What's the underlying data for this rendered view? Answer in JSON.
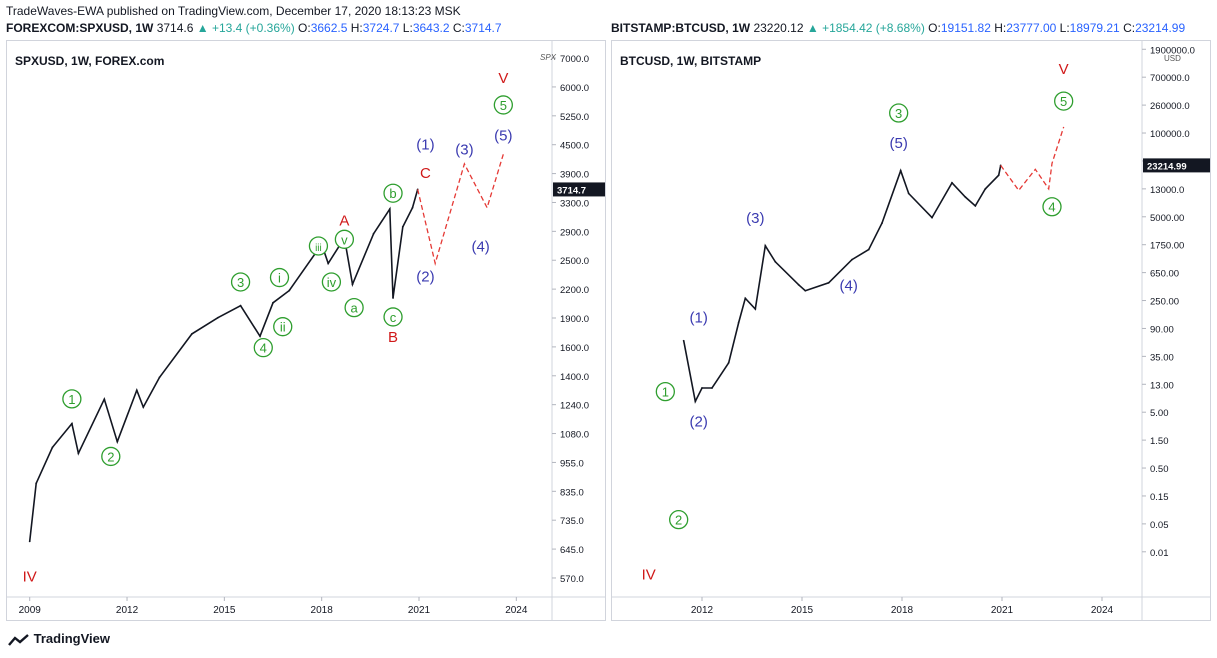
{
  "header": {
    "line1": "TradeWaves-EWA published on TradingView.com, December 17, 2020 18:13:23 MSK",
    "left": {
      "symbol": "FOREXCOM:SPXUSD, 1W",
      "price": "3714.6",
      "change": "▲ +13.4 (+0.36%)",
      "o_label": "O:",
      "o": "3662.5",
      "h_label": "H:",
      "h": "3724.7",
      "l_label": "L:",
      "l": "3643.2",
      "c_label": "C:",
      "c": "3714.7"
    },
    "right": {
      "symbol": "BITSTAMP:BTCUSD, 1W",
      "price": "23220.12",
      "change": "▲ +1854.42 (+8.68%)",
      "o_label": "O:",
      "o": "19151.82",
      "h_label": "H:",
      "h": "23777.00",
      "l_label": "L:",
      "l": "18979.21",
      "c_label": "C:",
      "c": "23214.99"
    }
  },
  "footer": {
    "brand": "TradingView"
  },
  "colors": {
    "green": "#2e9e2e",
    "blue": "#3a3ab0",
    "red": "#d01919",
    "price": "#131722",
    "projection": "#e53935"
  },
  "chart_data": [
    {
      "type": "line",
      "title": "SPXUSD, 1W, FOREX.com",
      "scale": "log",
      "y_ticks": [
        "7000.0",
        "6000.0",
        "5250.0",
        "4500.0",
        "3900.0",
        "3300.0",
        "2900.0",
        "2500.0",
        "2200.0",
        "1900.0",
        "1600.0",
        "1400.0",
        "1240.0",
        "1080.0",
        "955.0",
        "835.0",
        "735.0",
        "645.0",
        "570.0"
      ],
      "x_ticks": [
        "2009",
        "2012",
        "2015",
        "2018",
        "2021",
        "2024"
      ],
      "axis_corner": "SPX",
      "last_price_label": "3714.7",
      "x": [
        2009.0,
        2009.2,
        2009.7,
        2010.3,
        2010.5,
        2011.3,
        2011.7,
        2012.3,
        2012.5,
        2013.0,
        2014.0,
        2014.8,
        2015.5,
        2016.1,
        2016.5,
        2017.0,
        2018.0,
        2018.2,
        2018.7,
        2018.95,
        2019.6,
        2020.1,
        2020.2,
        2020.5,
        2020.8,
        2020.96
      ],
      "y": [
        680,
        900,
        1070,
        1200,
        1040,
        1350,
        1100,
        1410,
        1300,
        1500,
        1850,
        2000,
        2120,
        1830,
        2150,
        2280,
        2850,
        2600,
        2940,
        2350,
        3000,
        3380,
        2200,
        3100,
        3400,
        3714
      ],
      "projection": {
        "x": [
          2020.96,
          2021.5,
          2022.4,
          2023.1,
          2023.6
        ],
        "y": [
          3714,
          2600,
          4200,
          3400,
          4400
        ]
      },
      "labels": [
        {
          "text": "IV",
          "x": 2009.0,
          "y": 560,
          "color": "red"
        },
        {
          "text": "1",
          "x": 2010.3,
          "y": 1320,
          "color": "green",
          "circled": true
        },
        {
          "text": "2",
          "x": 2011.5,
          "y": 1000,
          "color": "green",
          "circled": true
        },
        {
          "text": "3",
          "x": 2015.5,
          "y": 2320,
          "color": "green",
          "circled": true
        },
        {
          "text": "4",
          "x": 2016.2,
          "y": 1690,
          "color": "green",
          "circled": true
        },
        {
          "text": "i",
          "x": 2016.7,
          "y": 2370,
          "color": "green",
          "circled": true
        },
        {
          "text": "ii",
          "x": 2016.8,
          "y": 1870,
          "color": "green",
          "circled": true
        },
        {
          "text": "iii",
          "x": 2017.9,
          "y": 2760,
          "color": "green",
          "circled": true
        },
        {
          "text": "iv",
          "x": 2018.3,
          "y": 2320,
          "color": "green",
          "circled": true
        },
        {
          "text": "v",
          "x": 2018.7,
          "y": 2850,
          "color": "green",
          "circled": true
        },
        {
          "text": "A",
          "x": 2018.7,
          "y": 3120,
          "color": "red"
        },
        {
          "text": "a",
          "x": 2019.0,
          "y": 2050,
          "color": "green",
          "circled": true
        },
        {
          "text": "b",
          "x": 2020.2,
          "y": 3560,
          "color": "green",
          "circled": true
        },
        {
          "text": "c",
          "x": 2020.2,
          "y": 1960,
          "color": "green",
          "circled": true
        },
        {
          "text": "B",
          "x": 2020.2,
          "y": 1780,
          "color": "red"
        },
        {
          "text": "C",
          "x": 2021.2,
          "y": 3920,
          "color": "red"
        },
        {
          "text": "(1)",
          "x": 2021.2,
          "y": 4500,
          "color": "blue"
        },
        {
          "text": "(2)",
          "x": 2021.2,
          "y": 2380,
          "color": "blue"
        },
        {
          "text": "(3)",
          "x": 2022.4,
          "y": 4400,
          "color": "blue"
        },
        {
          "text": "(4)",
          "x": 2022.9,
          "y": 2750,
          "color": "blue"
        },
        {
          "text": "(5)",
          "x": 2023.6,
          "y": 4700,
          "color": "blue"
        },
        {
          "text": "5",
          "x": 2023.6,
          "y": 5450,
          "color": "green",
          "circled": true
        },
        {
          "text": "V",
          "x": 2023.6,
          "y": 6200,
          "color": "red"
        }
      ]
    },
    {
      "type": "line",
      "title": "BTCUSD, 1W, BITSTAMP",
      "scale": "log",
      "y_ticks": [
        "1900000.0",
        "700000.0",
        "260000.0",
        "100000.0",
        "35000.0",
        "13000.0",
        "5000.00",
        "1750.00",
        "650.00",
        "250.00",
        "90.00",
        "35.00",
        "13.00",
        "5.00",
        "1.50",
        "0.50",
        "0.15",
        "0.05",
        "0.01"
      ],
      "y_unit": "USD",
      "x_ticks": [
        "2012",
        "2015",
        "2018",
        "2021",
        "2024"
      ],
      "last_price_label": "23214.99",
      "x": [
        2011.45,
        2011.8,
        2012.0,
        2012.3,
        2012.8,
        2013.1,
        2013.3,
        2013.6,
        2013.9,
        2014.2,
        2014.9,
        2015.1,
        2015.8,
        2016.5,
        2017.0,
        2017.4,
        2017.96,
        2018.2,
        2018.9,
        2019.5,
        2019.9,
        2020.2,
        2020.5,
        2020.9,
        2020.96
      ],
      "y": [
        30,
        3,
        5,
        5,
        13,
        60,
        150,
        100,
        1100,
        600,
        250,
        200,
        270,
        650,
        950,
        2600,
        19000,
        8000,
        3200,
        12000,
        7000,
        5000,
        9500,
        16000,
        23215
      ],
      "projection": {
        "x": [
          2020.96,
          2021.5,
          2022.0,
          2022.4,
          2022.5,
          2022.85
        ],
        "y": [
          23215,
          9000,
          20000,
          9500,
          25000,
          100000
        ]
      },
      "labels": [
        {
          "text": "IV",
          "x": 2010.4,
          "y": 0.0035,
          "color": "red"
        },
        {
          "text": "1",
          "x": 2010.9,
          "y": 3.6,
          "color": "green",
          "circled": true
        },
        {
          "text": "2",
          "x": 2011.3,
          "y": 0.028,
          "color": "green",
          "circled": true
        },
        {
          "text": "(1)",
          "x": 2011.9,
          "y": 60,
          "color": "blue"
        },
        {
          "text": "(2)",
          "x": 2011.9,
          "y": 1.15,
          "color": "blue"
        },
        {
          "text": "(3)",
          "x": 2013.6,
          "y": 2600,
          "color": "blue"
        },
        {
          "text": "(4)",
          "x": 2016.4,
          "y": 200,
          "color": "blue"
        },
        {
          "text": "3",
          "x": 2017.9,
          "y": 140000,
          "color": "green",
          "circled": true
        },
        {
          "text": "(5)",
          "x": 2017.9,
          "y": 45000,
          "color": "blue"
        },
        {
          "text": "4",
          "x": 2022.5,
          "y": 4000,
          "color": "green",
          "circled": true
        },
        {
          "text": "5",
          "x": 2022.85,
          "y": 220000,
          "color": "green",
          "circled": true
        },
        {
          "text": "V",
          "x": 2022.85,
          "y": 750000,
          "color": "red"
        }
      ]
    }
  ]
}
